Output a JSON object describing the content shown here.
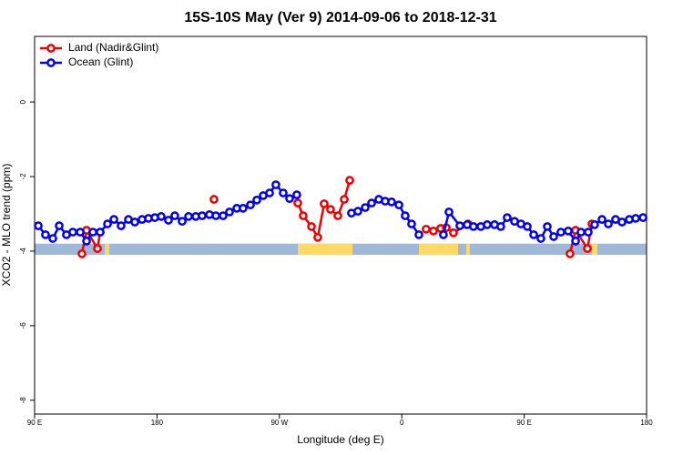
{
  "chart_data": {
    "type": "line",
    "title": "15S-10S May (Ver 9)   2014-09-06 to 2018-12-31",
    "x_label": "Longitude (deg E)",
    "y_label": "XCO2 - MLO trend (ppm)",
    "xlim": [
      90,
      540
    ],
    "ylim": [
      -8.37,
      1.76
    ],
    "xticks": [
      {
        "value": 90,
        "label": "90 E"
      },
      {
        "value": 180,
        "label": "180"
      },
      {
        "value": 270,
        "label": "90 W"
      },
      {
        "value": 360,
        "label": "0"
      },
      {
        "value": 450,
        "label": "90 E"
      },
      {
        "value": 540,
        "label": "180"
      }
    ],
    "yticks": [
      -8,
      -6,
      -4,
      -2,
      0
    ],
    "legend_position": "top-left",
    "land_mask": {
      "y_range": [
        -3.8,
        -4.1
      ],
      "ocean_color": "#9fb8d8",
      "land_color": "#ffd966",
      "land_lon": [
        [
          141.6,
          144.9
        ],
        [
          283.5,
          323.7
        ],
        [
          372.6,
          401.4
        ],
        [
          407.4,
          410.0
        ],
        [
          499.8,
          503.8
        ]
      ]
    },
    "series": [
      {
        "name": "Land (Nadir&Glint)",
        "color": "#ee0000",
        "x": [
          124.8,
          128.2,
          136.2,
          138.2,
          null,
          221.9,
          null,
          283.5,
          287.5,
          293.6,
          298.2,
          302.9,
          307.6,
          313.0,
          317.7,
          321.7,
          null,
          377.9,
          383.3,
          388.6,
          392.7,
          398.0,
          408.7,
          null,
          483.7,
          487.8,
          496.5,
          499.8
        ],
        "values": [
          -4.07,
          -3.44,
          -3.93,
          -3.49,
          null,
          -2.61,
          null,
          -2.71,
          -3.05,
          -3.34,
          -3.63,
          -2.73,
          -2.88,
          -3.05,
          -2.61,
          -2.1,
          null,
          -3.41,
          -3.46,
          -3.39,
          -3.37,
          -3.51,
          -3.27,
          null,
          -4.07,
          -3.44,
          -3.93,
          -3.27
        ]
      },
      {
        "name": "Ocean (Glint)",
        "color": "#0000ee",
        "x": [
          92.7,
          98.0,
          103.4,
          108.1,
          113.4,
          118.1,
          123.5,
          128.2,
          132.9,
          138.2,
          143.6,
          148.3,
          153.6,
          159.0,
          163.7,
          169.0,
          173.7,
          178.4,
          183.1,
          188.4,
          193.1,
          198.5,
          203.2,
          208.5,
          213.2,
          218.6,
          223.3,
          228.6,
          233.3,
          238.7,
          243.3,
          248.7,
          253.4,
          258.1,
          262.8,
          267.4,
          272.8,
          277.5,
          282.8,
          null,
          323.0,
          327.7,
          333.1,
          337.8,
          343.1,
          347.8,
          352.5,
          357.9,
          362.5,
          367.2,
          372.6,
          null,
          390.6,
          394.7,
          402.7,
          408.1,
          412.7,
          418.1,
          422.8,
          428.2,
          432.8,
          437.5,
          442.9,
          447.6,
          452.3,
          457.0,
          462.3,
          467.0,
          471.7,
          477.0,
          482.4,
          487.8,
          491.8,
          497.1,
          501.8,
          507.2,
          511.9,
          517.2,
          521.9,
          527.3,
          532.0,
          537.4
        ],
        "values": [
          -3.32,
          -3.56,
          -3.66,
          -3.32,
          -3.56,
          -3.49,
          -3.49,
          -3.73,
          -3.49,
          -3.49,
          -3.27,
          -3.15,
          -3.32,
          -3.15,
          -3.22,
          -3.15,
          -3.12,
          -3.1,
          -3.07,
          -3.17,
          -3.05,
          -3.2,
          -3.07,
          -3.07,
          -3.05,
          -3.02,
          -3.05,
          -3.05,
          -2.95,
          -2.85,
          -2.85,
          -2.76,
          -2.63,
          -2.51,
          -2.44,
          -2.22,
          -2.44,
          -2.59,
          -2.49,
          null,
          -2.98,
          -2.93,
          -2.83,
          -2.71,
          -2.61,
          -2.66,
          -2.68,
          -2.76,
          -3.05,
          -3.27,
          -3.56,
          null,
          -3.56,
          -2.95,
          -3.32,
          -3.29,
          -3.34,
          -3.34,
          -3.29,
          -3.29,
          -3.34,
          -3.1,
          -3.2,
          -3.27,
          -3.34,
          -3.56,
          -3.66,
          -3.34,
          -3.61,
          -3.49,
          -3.46,
          -3.73,
          -3.49,
          -3.49,
          -3.29,
          -3.15,
          -3.27,
          -3.15,
          -3.22,
          -3.15,
          -3.12,
          -3.1
        ]
      }
    ]
  }
}
